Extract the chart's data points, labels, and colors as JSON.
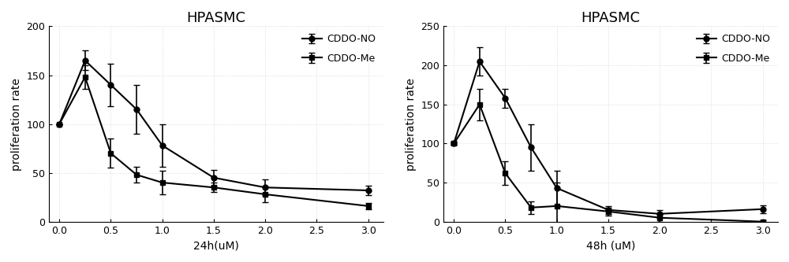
{
  "chart1": {
    "title": "HPASMC",
    "xlabel": "24h(uM)",
    "ylabel": "proliferation rate",
    "xlim": [
      -0.1,
      3.15
    ],
    "ylim": [
      0,
      200
    ],
    "yticks": [
      0,
      50,
      100,
      150,
      200
    ],
    "xticks": [
      0.0,
      0.5,
      1.0,
      1.5,
      2.0,
      2.5,
      3.0
    ],
    "series": [
      {
        "label": "CDDO-NO",
        "marker": "o",
        "x": [
          0.0,
          0.25,
          0.5,
          0.75,
          1.0,
          1.5,
          2.0,
          3.0
        ],
        "y": [
          100,
          165,
          140,
          115,
          78,
          45,
          35,
          32
        ],
        "yerr": [
          0,
          10,
          22,
          25,
          22,
          8,
          8,
          5
        ]
      },
      {
        "label": "CDDO-Me",
        "marker": "s",
        "x": [
          0.0,
          0.25,
          0.5,
          0.75,
          1.0,
          1.5,
          2.0,
          3.0
        ],
        "y": [
          100,
          148,
          70,
          48,
          40,
          35,
          28,
          16
        ],
        "yerr": [
          0,
          12,
          15,
          8,
          12,
          5,
          8,
          3
        ]
      }
    ]
  },
  "chart2": {
    "title": "HPASMC",
    "xlabel": "48h (uM)",
    "ylabel": "proliferation rate",
    "xlim": [
      -0.1,
      3.15
    ],
    "ylim": [
      0,
      250
    ],
    "yticks": [
      0,
      50,
      100,
      150,
      200,
      250
    ],
    "xticks": [
      0.0,
      0.5,
      1.0,
      1.5,
      2.0,
      2.5,
      3.0
    ],
    "series": [
      {
        "label": "CDDO-NO",
        "marker": "o",
        "x": [
          0.0,
          0.25,
          0.5,
          0.75,
          1.0,
          1.5,
          2.0,
          3.0
        ],
        "y": [
          100,
          205,
          158,
          95,
          43,
          15,
          10,
          16
        ],
        "yerr": [
          2,
          18,
          12,
          30,
          22,
          5,
          5,
          5
        ]
      },
      {
        "label": "CDDO-Me",
        "marker": "s",
        "x": [
          0.0,
          0.25,
          0.5,
          0.75,
          1.0,
          1.5,
          2.0,
          3.0
        ],
        "y": [
          100,
          150,
          62,
          18,
          20,
          13,
          5,
          0
        ],
        "yerr": [
          2,
          20,
          15,
          8,
          30,
          5,
          5,
          2
        ]
      }
    ]
  },
  "line_color": "#000000",
  "marker_size": 5,
  "linewidth": 1.5,
  "capsize": 3,
  "elinewidth": 1.2,
  "legend_fontsize": 9,
  "title_fontsize": 13,
  "axis_label_fontsize": 10,
  "tick_fontsize": 9,
  "bg_color": "#ffffff"
}
